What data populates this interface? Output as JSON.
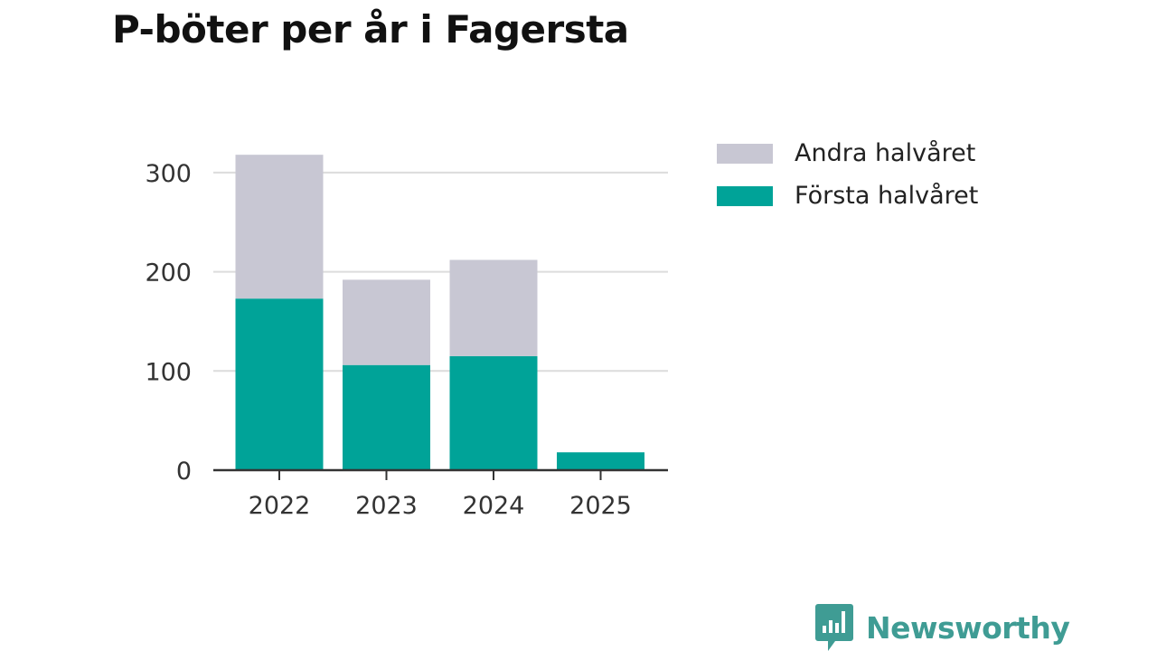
{
  "title": "P-böter per år i Fagersta",
  "brand": {
    "name": "Newsworthy",
    "icon": "newsworthy-logo-icon",
    "color": "#3f9c94"
  },
  "chart_data": {
    "type": "bar",
    "stacked": true,
    "categories": [
      "2022",
      "2023",
      "2024",
      "2025"
    ],
    "series": [
      {
        "name": "Första halvåret",
        "color": "#00a398",
        "values": [
          173,
          106,
          115,
          18
        ]
      },
      {
        "name": "Andra halvåret",
        "color": "#c8c7d3",
        "values": [
          145,
          86,
          97,
          0
        ]
      }
    ],
    "yticks": [
      "0",
      "100",
      "200",
      "300"
    ],
    "ylim": [
      0,
      320
    ],
    "grid": true,
    "legend_position": "right",
    "legend": [
      {
        "name": "Andra halvåret",
        "color": "#c8c7d3"
      },
      {
        "name": "Första halvåret",
        "color": "#00a398"
      }
    ]
  }
}
